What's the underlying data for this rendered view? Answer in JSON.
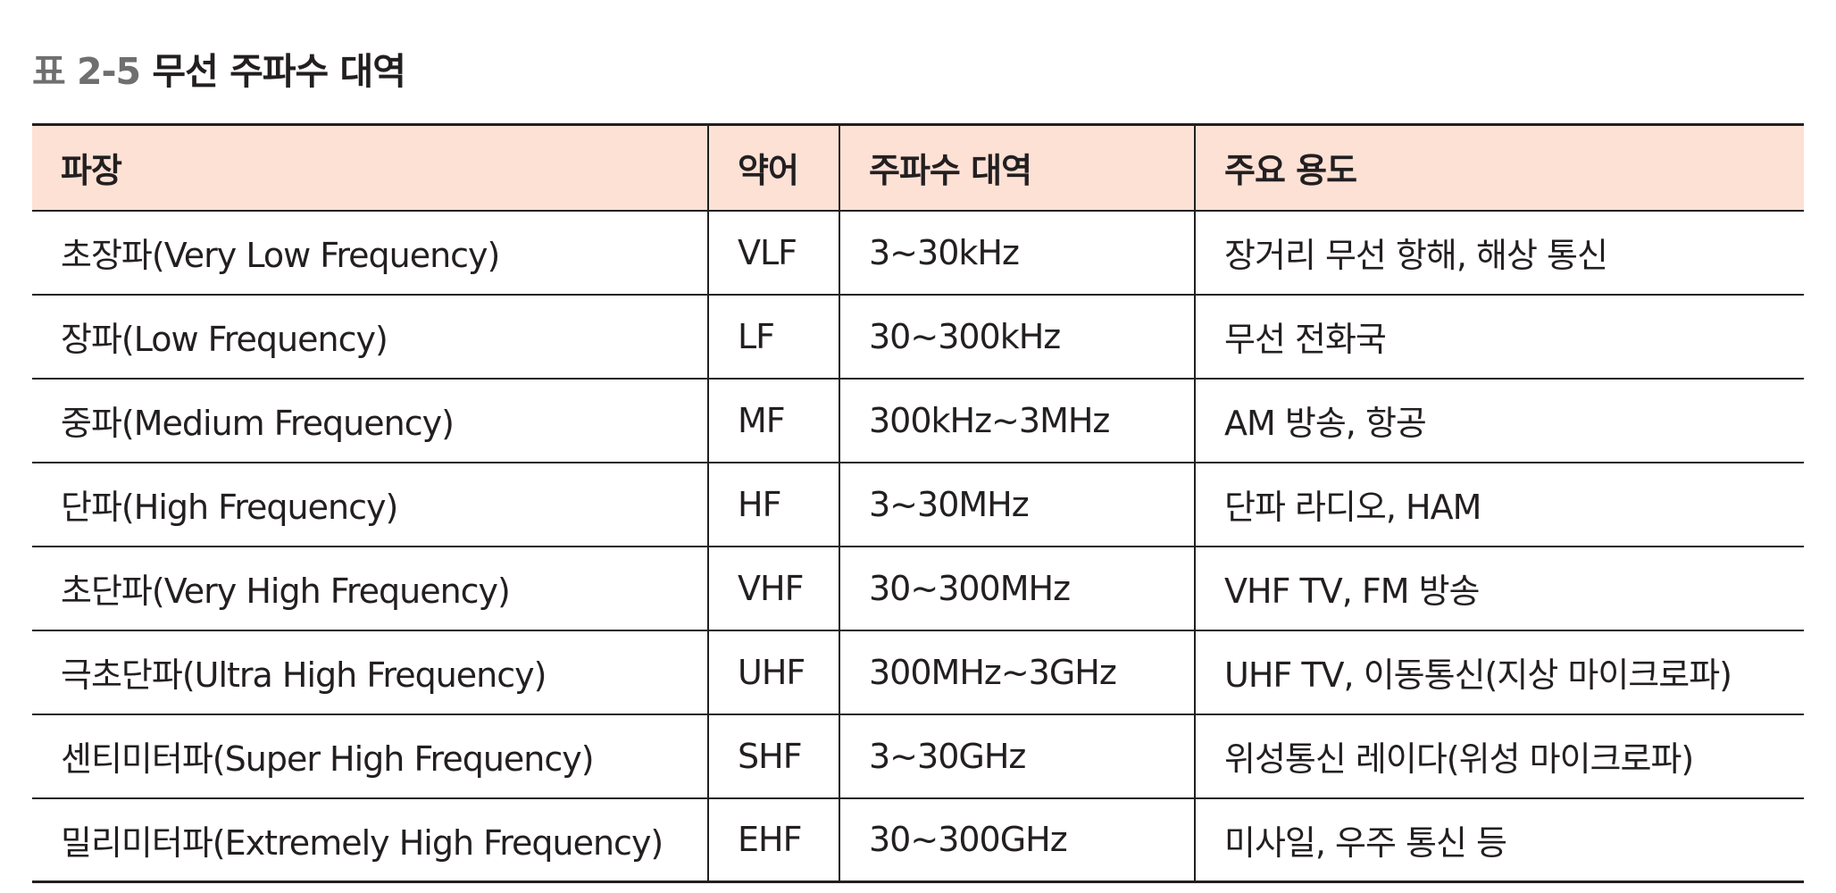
{
  "caption": {
    "number": "표 2-5",
    "title": "무선 주파수 대역"
  },
  "table": {
    "headers": [
      "파장",
      "약어",
      "주파수 대역",
      "주요 용도"
    ],
    "rows": [
      {
        "wavelength": "초장파(Very Low Frequency)",
        "abbr": "VLF",
        "band": "3~30kHz",
        "usage": "장거리 무선 항해, 해상 통신"
      },
      {
        "wavelength": "장파(Low Frequency)",
        "abbr": "LF",
        "band": "30~300kHz",
        "usage": "무선 전화국"
      },
      {
        "wavelength": "중파(Medium Frequency)",
        "abbr": "MF",
        "band": "300kHz~3MHz",
        "usage": "AM 방송, 항공"
      },
      {
        "wavelength": "단파(High Frequency)",
        "abbr": "HF",
        "band": "3~30MHz",
        "usage": "단파 라디오, HAM"
      },
      {
        "wavelength": "초단파(Very High Frequency)",
        "abbr": "VHF",
        "band": "30~300MHz",
        "usage": "VHF TV, FM 방송"
      },
      {
        "wavelength": "극초단파(Ultra High Frequency)",
        "abbr": "UHF",
        "band": "300MHz~3GHz",
        "usage": "UHF TV, 이동통신(지상 마이크로파)"
      },
      {
        "wavelength": "센티미터파(Super High Frequency)",
        "abbr": "SHF",
        "band": "3~30GHz",
        "usage": "위성통신 레이다(위성 마이크로파)"
      },
      {
        "wavelength": "밀리미터파(Extremely High Frequency)",
        "abbr": "EHF",
        "band": "30~300GHz",
        "usage": "미사일, 우주 통신 등"
      }
    ]
  },
  "colors": {
    "header_background": "#fde1d5",
    "caption_number": "#6f6f6f",
    "text": "#231f20",
    "rule": "#231f20"
  }
}
